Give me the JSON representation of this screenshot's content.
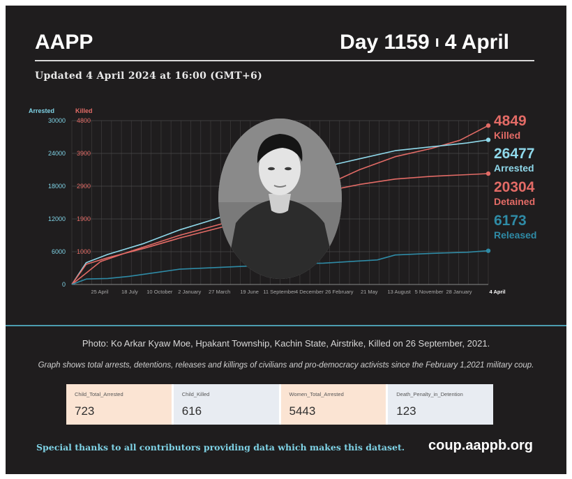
{
  "header": {
    "brand": "AAPP",
    "day_label": "Day 1159",
    "separator": "ı",
    "date_label": "4 April",
    "updated": "Updated 4 April 2024 at 16:00 (GMT+6)"
  },
  "chart_data": {
    "type": "line",
    "axes": {
      "left_arrested": {
        "label": "Arrested",
        "ticks": [
          "0",
          "6000",
          "12000",
          "18000",
          "24000",
          "30000"
        ],
        "ylim": [
          0,
          30000
        ]
      },
      "left_killed": {
        "label": "Killed",
        "ticks": [
          "1000",
          "1900",
          "2900",
          "3900",
          "4800"
        ]
      },
      "x_ticks": [
        "25 April",
        "18 July",
        "10 October",
        "2 January",
        "27 March",
        "19 June",
        "11 September",
        "4 December",
        "26 February",
        "21 May",
        "13 August",
        "5 November",
        "28 January",
        "4 April"
      ]
    },
    "x_index_range": [
      0,
      1159
    ],
    "grid": true,
    "legend_placement": "right",
    "series": [
      {
        "name": "Killed",
        "color": "#e36b66",
        "final_value": "4849",
        "axis": "killed",
        "points": [
          [
            0,
            0
          ],
          [
            40,
            350
          ],
          [
            80,
            700
          ],
          [
            160,
            1000
          ],
          [
            300,
            1500
          ],
          [
            450,
            1950
          ],
          [
            600,
            2400
          ],
          [
            650,
            2700
          ],
          [
            700,
            3000
          ],
          [
            800,
            3500
          ],
          [
            900,
            3900
          ],
          [
            1000,
            4150
          ],
          [
            1080,
            4400
          ],
          [
            1159,
            4849
          ]
        ]
      },
      {
        "name": "Arrested",
        "color": "#8fd8ea",
        "final_value": "26477",
        "axis": "arrested",
        "points": [
          [
            0,
            0
          ],
          [
            40,
            4000
          ],
          [
            100,
            5500
          ],
          [
            200,
            7500
          ],
          [
            300,
            10000
          ],
          [
            400,
            12000
          ],
          [
            500,
            14500
          ],
          [
            600,
            16000
          ],
          [
            632,
            16800
          ],
          [
            632,
            19800
          ],
          [
            700,
            21500
          ],
          [
            800,
            23000
          ],
          [
            900,
            24500
          ],
          [
            1000,
            25200
          ],
          [
            1100,
            25900
          ],
          [
            1159,
            26477
          ]
        ]
      },
      {
        "name": "Detained",
        "color": "#e36b66",
        "final_value": "20304",
        "axis": "arrested",
        "points": [
          [
            0,
            0
          ],
          [
            40,
            3700
          ],
          [
            100,
            4900
          ],
          [
            200,
            6600
          ],
          [
            300,
            8500
          ],
          [
            400,
            10200
          ],
          [
            500,
            11900
          ],
          [
            600,
            13500
          ],
          [
            632,
            14500
          ],
          [
            700,
            17000
          ],
          [
            800,
            18300
          ],
          [
            900,
            19300
          ],
          [
            1000,
            19800
          ],
          [
            1100,
            20100
          ],
          [
            1159,
            20304
          ]
        ]
      },
      {
        "name": "Released",
        "color": "#2f8ba6",
        "final_value": "6173",
        "axis": "arrested",
        "points": [
          [
            0,
            0
          ],
          [
            40,
            1000
          ],
          [
            100,
            1100
          ],
          [
            160,
            1500
          ],
          [
            300,
            2800
          ],
          [
            500,
            3400
          ],
          [
            600,
            3800
          ],
          [
            700,
            3900
          ],
          [
            800,
            4300
          ],
          [
            850,
            4500
          ],
          [
            900,
            5400
          ],
          [
            1000,
            5700
          ],
          [
            1100,
            5900
          ],
          [
            1159,
            6173
          ]
        ]
      }
    ]
  },
  "photo": {
    "caption": "Photo: Ko Arkar Kyaw Moe, Hpakant Township, Kachin State, Airstrike, Killed on 26 September, 2021."
  },
  "note": "Graph shows total arrests, detentions, releases and killings of civilians and pro-democracy activists since the February 1,2021 military coup.",
  "stats": [
    {
      "label": "Child_Total_Arrested",
      "value": "723",
      "color": "#fbe4d3"
    },
    {
      "label": "Child_Killed",
      "value": "616",
      "color": "#e8ecf2"
    },
    {
      "label": "Women_Total_Arrested",
      "value": "5443",
      "color": "#fbe4d3"
    },
    {
      "label": "Death_Penalty_in_Detention",
      "value": "123",
      "color": "#e8ecf2"
    }
  ],
  "footer": {
    "thanks": "Special thanks to all contributors providing data which makes this dataset.",
    "url": "coup.aappb.org"
  }
}
